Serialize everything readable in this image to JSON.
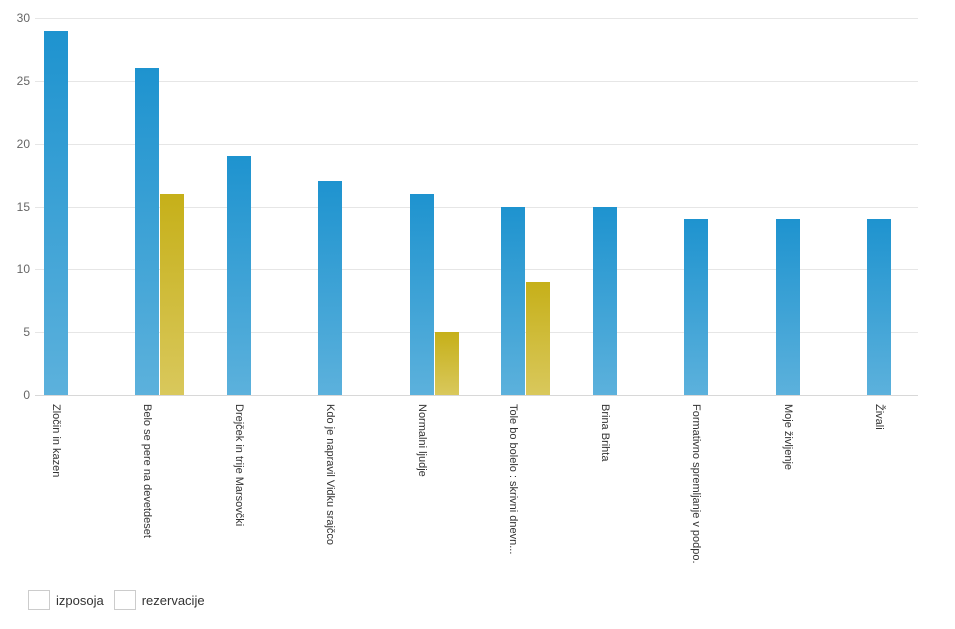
{
  "chart_data": {
    "type": "bar",
    "title": "",
    "xlabel": "",
    "ylabel": "",
    "categories": [
      "Zločin in kazen",
      "Belo se pere na devetdeset",
      "Drejček in trije Marsovčki",
      "Kdo je napravil Vidku srajčco",
      "Normalni ljudje",
      "Tole bo bolelo : skrivni dnevn...",
      "Brina Brihta",
      "Formativno spremljanje v podpo.",
      "Moje življenje",
      "Živali"
    ],
    "series": [
      {
        "name": "izposoja",
        "color": "#1f96cc",
        "gradient_top": "#1e93cf",
        "gradient_bottom": "#5cb1dc",
        "values": [
          29,
          26,
          19,
          17,
          16,
          15,
          15,
          14,
          14,
          14
        ]
      },
      {
        "name": "rezervacije",
        "color": "#c0aa14",
        "gradient_top": "#c6b019",
        "gradient_bottom": "#d9c85c",
        "values": [
          0,
          16,
          0,
          0,
          5,
          9,
          0,
          0,
          0,
          0
        ]
      }
    ],
    "ylim": [
      0,
      30
    ],
    "yticks": [
      0,
      5,
      10,
      15,
      20,
      25,
      30
    ],
    "grid": "horizontal-only",
    "legend_position": "bottom-left"
  }
}
